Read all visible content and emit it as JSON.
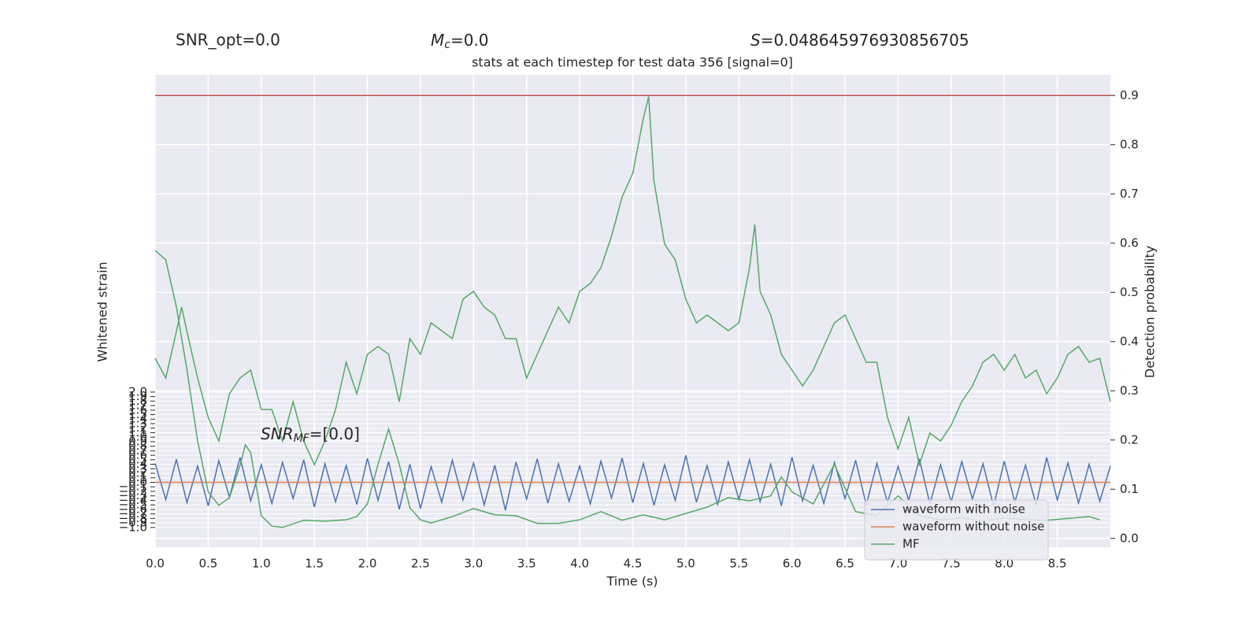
{
  "chart_data": {
    "type": "line",
    "title": "stats at each timestep for test data 356 [signal=0]",
    "annotations": [
      {
        "text": "SNR_opt=0.0"
      },
      {
        "symbol": "M",
        "sub": "c",
        "text": "=0.0"
      },
      {
        "symbol": "S",
        "text": "=0.048645976930856705"
      },
      {
        "symbol": "SNR",
        "sub": "MF",
        "text": "=[0.0]"
      }
    ],
    "xlabel": "Time (s)",
    "ylabel": "Whitened strain",
    "y2label": "Detection probability",
    "xlim": [
      0,
      9.0
    ],
    "xticks": [
      {
        "value": 0,
        "label": "0.0"
      },
      0.5,
      {
        "value": 1,
        "label": "1.0"
      },
      1.5,
      {
        "value": 2,
        "label": "2.0"
      },
      2.5,
      {
        "value": 3,
        "label": "3.0"
      },
      3.5,
      {
        "value": 4,
        "label": "4.0"
      },
      4.5,
      {
        "value": 5,
        "label": "5.0"
      },
      5.5,
      {
        "value": 6,
        "label": "6.0"
      },
      6.5,
      {
        "value": 7,
        "label": "7.0"
      },
      7.5,
      {
        "value": 8,
        "label": "8.0"
      },
      8.5
    ],
    "ylim": [
      -1.44,
      9.03
    ],
    "yticks": [
      {
        "value": 2,
        "label": "2.0"
      },
      1.9,
      1.8,
      1.7,
      1.6,
      1.5,
      1.4,
      1.3,
      1.2,
      1.1,
      {
        "value": 1,
        "label": "1.0"
      },
      0.9,
      0.8,
      0.7,
      0.6,
      0.5,
      0.4,
      0.3,
      0.2,
      0.1,
      {
        "value": 0,
        "label": "0.0"
      },
      {
        "value": -0.1,
        "label": "−0.1"
      },
      {
        "value": -0.2,
        "label": "−0.2"
      },
      {
        "value": -0.3,
        "label": "−0.3"
      },
      {
        "value": -0.4,
        "label": "−0.4"
      },
      {
        "value": -0.5,
        "label": "−0.5"
      },
      {
        "value": -0.6,
        "label": "−0.6"
      },
      {
        "value": -0.7,
        "label": "−0.7"
      },
      {
        "value": -0.8,
        "label": "−0.8"
      },
      {
        "value": -0.9,
        "label": "−0.9"
      },
      {
        "value": -1,
        "label": "−1.0"
      }
    ],
    "y2lim": [
      -0.018,
      0.942
    ],
    "y2ticks": [
      {
        "value": 0,
        "label": "0.0"
      },
      0.1,
      0.2,
      0.3,
      0.4,
      0.5,
      0.6,
      0.7,
      0.8,
      0.9
    ],
    "threshold": {
      "value": 0.9,
      "color": "#c44e52",
      "axis": "y2"
    },
    "grid": true,
    "legend": "lower right",
    "series": [
      {
        "name": "waveform with noise",
        "color": "#4c72b0",
        "x": [
          0,
          0.1,
          0.2,
          0.3,
          0.4,
          0.5,
          0.6,
          0.7,
          0.8,
          0.9,
          1,
          1.1,
          1.2,
          1.3,
          1.4,
          1.5,
          1.6,
          1.7,
          1.8,
          1.9,
          2,
          2.1,
          2.2,
          2.3,
          2.4,
          2.5,
          2.6,
          2.7,
          2.8,
          2.9,
          3,
          3.1,
          3.2,
          3.3,
          3.4,
          3.5,
          3.6,
          3.7,
          3.8,
          3.9,
          4,
          4.1,
          4.2,
          4.3,
          4.4,
          4.5,
          4.6,
          4.7,
          4.8,
          4.9,
          5,
          5.1,
          5.2,
          5.3,
          5.4,
          5.5,
          5.6,
          5.7,
          5.8,
          5.9,
          6,
          6.1,
          6.2,
          6.3,
          6.4,
          6.5,
          6.6,
          6.7,
          6.8,
          6.9,
          7,
          7.1,
          7.2,
          7.3,
          7.4,
          7.5,
          7.6,
          7.7,
          7.8,
          7.9,
          8,
          8.1,
          8.2,
          8.3,
          8.4,
          8.5,
          8.6,
          8.7,
          8.8,
          8.9,
          9
        ],
        "values": [
          0.42,
          -0.38,
          0.51,
          -0.45,
          0.36,
          -0.52,
          0.48,
          -0.33,
          0.55,
          -0.41,
          0.39,
          -0.47,
          0.44,
          -0.36,
          0.5,
          -0.55,
          0.41,
          -0.43,
          0.37,
          -0.49,
          0.53,
          -0.4,
          0.46,
          -0.6,
          0.4,
          -0.58,
          0.35,
          -0.44,
          0.49,
          -0.39,
          0.43,
          -0.5,
          0.38,
          -0.62,
          0.45,
          -0.37,
          0.52,
          -0.46,
          0.41,
          -0.42,
          0.36,
          -0.48,
          0.47,
          -0.35,
          0.54,
          -0.45,
          0.42,
          -0.51,
          0.39,
          -0.4,
          0.6,
          -0.44,
          0.37,
          -0.49,
          0.45,
          -0.38,
          0.5,
          -0.43,
          0.4,
          -0.52,
          0.56,
          -0.41,
          0.38,
          -0.47,
          0.44,
          -0.36,
          0.49,
          -0.5,
          0.42,
          -0.45,
          0.35,
          -0.4,
          0.52,
          -0.48,
          0.39,
          -0.43,
          0.46,
          -0.37,
          0.41,
          -0.53,
          0.47,
          -0.44,
          0.38,
          -0.5,
          0.55,
          -0.39,
          0.43,
          -0.46,
          0.4,
          -0.42,
          0.36
        ]
      },
      {
        "name": "waveform without noise",
        "color": "#dd8452",
        "x": [
          0,
          9
        ],
        "values": [
          0,
          0
        ]
      },
      {
        "name": "MF",
        "color": "#55a868",
        "x": [
          0,
          0.1,
          0.2,
          0.3,
          0.4,
          0.5,
          0.6,
          0.7,
          0.8,
          0.85,
          0.9,
          1,
          1.1,
          1.2,
          1.4,
          1.6,
          1.8,
          1.9,
          2,
          2.1,
          2.2,
          2.3,
          2.4,
          2.5,
          2.6,
          2.8,
          3,
          3.2,
          3.4,
          3.6,
          3.8,
          4,
          4.2,
          4.4,
          4.6,
          4.8,
          5,
          5.2,
          5.4,
          5.6,
          5.8,
          5.9,
          6,
          6.2,
          6.4,
          6.5,
          6.6,
          6.8,
          7,
          7.2,
          7.4,
          7.6,
          7.8,
          8,
          8.2,
          8.4,
          8.6,
          8.8,
          8.9
        ],
        "values": [
          5.14,
          4.93,
          3.89,
          2.49,
          0.92,
          -0.21,
          -0.51,
          -0.34,
          0.38,
          0.83,
          0.66,
          -0.74,
          -0.97,
          -1,
          -0.84,
          -0.86,
          -0.83,
          -0.76,
          -0.48,
          0.4,
          1.18,
          0.4,
          -0.56,
          -0.83,
          -0.9,
          -0.76,
          -0.58,
          -0.72,
          -0.74,
          -0.91,
          -0.91,
          -0.83,
          -0.65,
          -0.84,
          -0.72,
          -0.83,
          -0.69,
          -0.55,
          -0.34,
          -0.41,
          -0.3,
          0.12,
          -0.21,
          -0.48,
          0.4,
          -0.13,
          -0.65,
          -0.74,
          -0.3,
          -0.74,
          -0.83,
          -0.79,
          -0.86,
          -0.79,
          -0.83,
          -0.84,
          -0.8,
          -0.76,
          -0.83
        ]
      },
      {
        "color": "#55a868",
        "axis": "y2",
        "x": [
          0,
          0.1,
          0.2,
          0.25,
          0.3,
          0.4,
          0.5,
          0.6,
          0.7,
          0.8,
          0.9,
          1,
          1.1,
          1.2,
          1.3,
          1.4,
          1.5,
          1.6,
          1.7,
          1.8,
          1.9,
          2,
          2.1,
          2.2,
          2.3,
          2.4,
          2.5,
          2.6,
          2.7,
          2.8,
          2.9,
          3,
          3.1,
          3.2,
          3.3,
          3.4,
          3.5,
          3.6,
          3.7,
          3.8,
          3.9,
          4,
          4.1,
          4.2,
          4.3,
          4.4,
          4.5,
          4.6,
          4.65,
          4.7,
          4.8,
          4.9,
          5,
          5.1,
          5.2,
          5.3,
          5.4,
          5.5,
          5.6,
          5.65,
          5.7,
          5.8,
          5.9,
          6,
          6.1,
          6.2,
          6.3,
          6.4,
          6.5,
          6.6,
          6.7,
          6.8,
          6.9,
          7,
          7.1,
          7.2,
          7.3,
          7.4,
          7.5,
          7.6,
          7.7,
          7.8,
          7.9,
          8,
          8.1,
          8.2,
          8.3,
          8.4,
          8.5,
          8.6,
          8.7,
          8.8,
          8.9,
          9
        ],
        "values": [
          0.366,
          0.326,
          0.42,
          0.47,
          0.42,
          0.326,
          0.246,
          0.198,
          0.294,
          0.326,
          0.342,
          0.262,
          0.262,
          0.198,
          0.278,
          0.198,
          0.15,
          0.198,
          0.262,
          0.358,
          0.294,
          0.374,
          0.39,
          0.374,
          0.278,
          0.406,
          0.374,
          0.438,
          0.422,
          0.406,
          0.486,
          0.502,
          0.47,
          0.454,
          0.406,
          0.406,
          0.326,
          0.374,
          0.422,
          0.47,
          0.438,
          0.502,
          0.518,
          0.55,
          0.614,
          0.694,
          0.742,
          0.854,
          0.898,
          0.726,
          0.598,
          0.566,
          0.486,
          0.438,
          0.454,
          0.438,
          0.422,
          0.438,
          0.55,
          0.638,
          0.502,
          0.454,
          0.374,
          0.342,
          0.31,
          0.342,
          0.39,
          0.438,
          0.454,
          0.406,
          0.358,
          0.358,
          0.246,
          0.182,
          0.246,
          0.15,
          0.214,
          0.198,
          0.23,
          0.278,
          0.31,
          0.358,
          0.374,
          0.342,
          0.374,
          0.326,
          0.342,
          0.294,
          0.326,
          0.374,
          0.39,
          0.358,
          0.366,
          0.278
        ]
      }
    ]
  }
}
